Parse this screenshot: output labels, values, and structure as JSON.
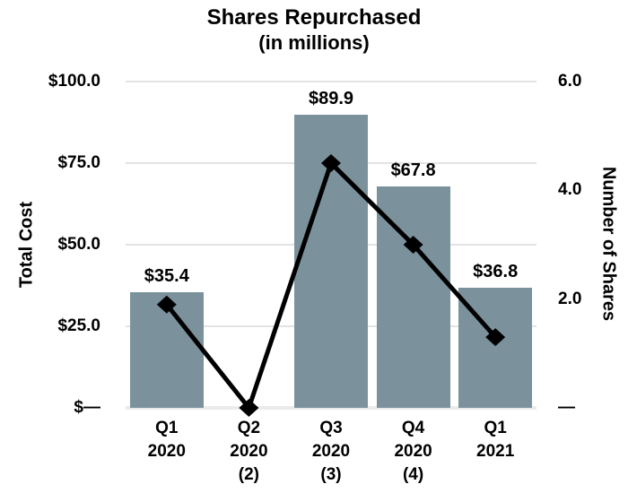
{
  "chart_data": {
    "type": "combo-bar-line",
    "title": "Shares Repurchased",
    "subtitle": "(in millions)",
    "categories": [
      [
        "Q1",
        "2020"
      ],
      [
        "Q2",
        "2020",
        "(2)"
      ],
      [
        "Q3",
        "2020",
        "(3)"
      ],
      [
        "Q4",
        "2020",
        "(4)"
      ],
      [
        "Q1",
        "2021"
      ]
    ],
    "series": [
      {
        "name": "Total Cost",
        "type": "bar",
        "axis": "left",
        "values": [
          35.4,
          0,
          89.9,
          67.8,
          36.8
        ],
        "data_labels": [
          "$35.4",
          "",
          "$89.9",
          "$67.8",
          "$36.8"
        ],
        "color": "#7b929d"
      },
      {
        "name": "Number of Shares",
        "type": "line",
        "axis": "right",
        "values": [
          1.9,
          0.0,
          4.5,
          3.0,
          1.3
        ],
        "color": "#000000",
        "marker": "diamond"
      }
    ],
    "left_axis": {
      "title": "Total Cost",
      "range": [
        0,
        100
      ],
      "ticks": [
        {
          "label": "$100.0",
          "value": 100
        },
        {
          "label": "$75.0",
          "value": 75
        },
        {
          "label": "$50.0",
          "value": 50
        },
        {
          "label": "$25.0",
          "value": 25
        },
        {
          "label": "$—",
          "value": 0
        }
      ]
    },
    "right_axis": {
      "title": "Number of Shares",
      "range": [
        0,
        6
      ],
      "ticks": [
        {
          "label": "6.0",
          "value": 6
        },
        {
          "label": "4.0",
          "value": 4
        },
        {
          "label": "2.0",
          "value": 2
        },
        {
          "label": "—",
          "value": 0
        }
      ]
    },
    "grid": "horizontal",
    "legend": "none",
    "background": "#ffffff"
  }
}
